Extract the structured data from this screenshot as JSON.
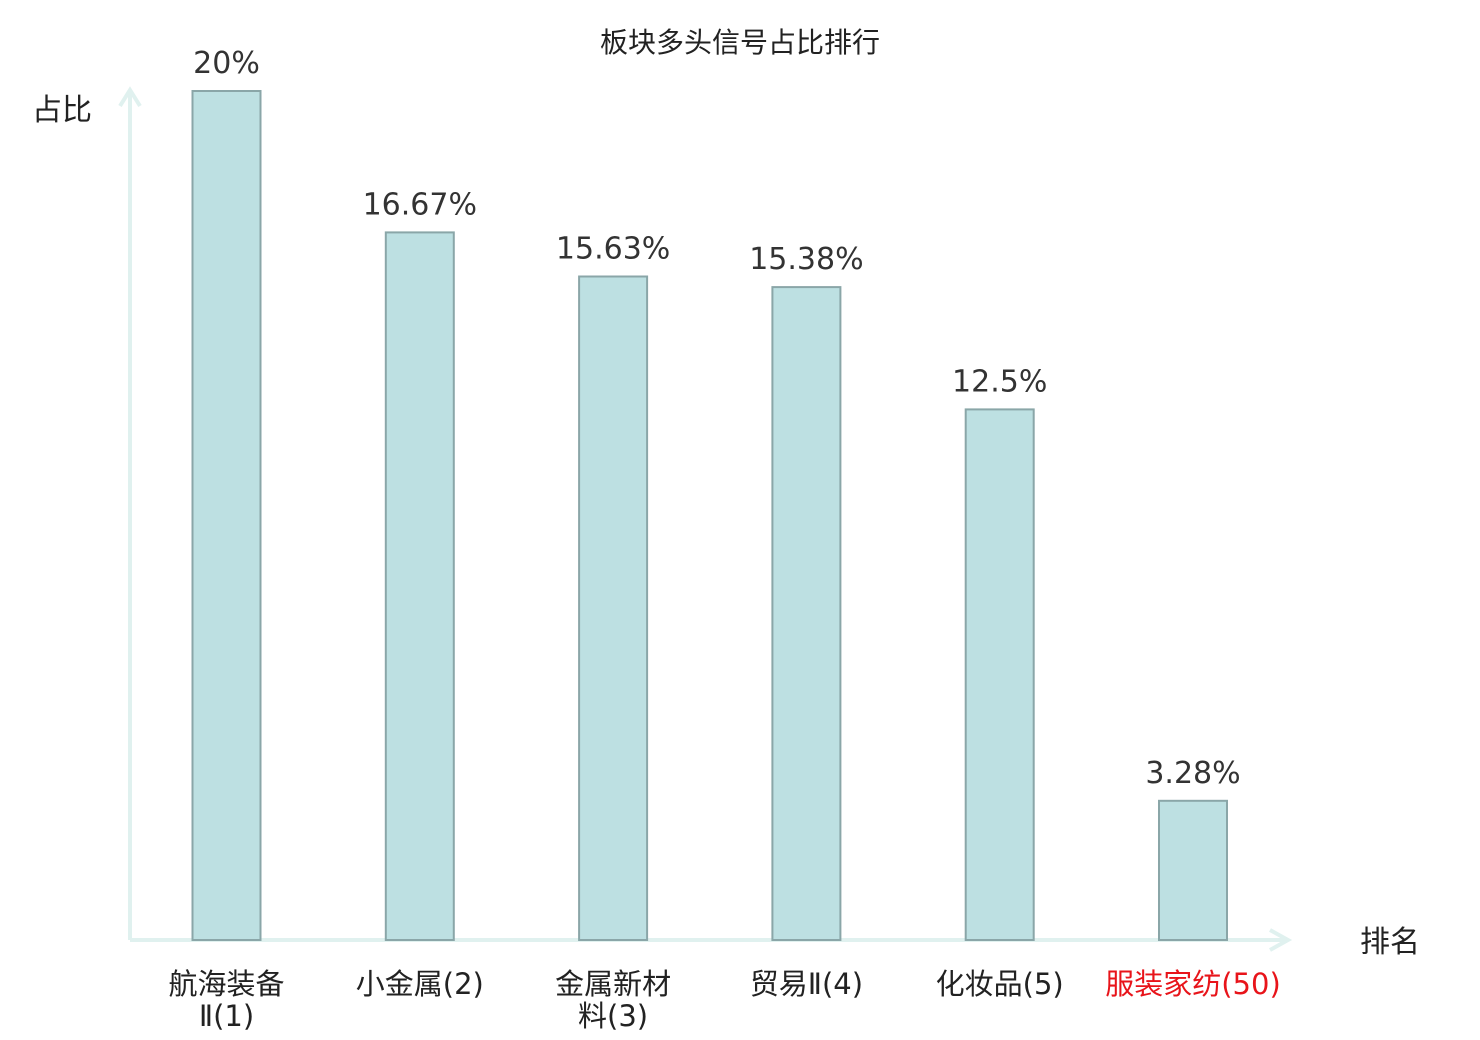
{
  "chart_data": {
    "type": "bar",
    "title": "板块多头信号占比排行",
    "ylabel": "占比",
    "xlabel": "排名",
    "ylim": [
      0,
      20
    ],
    "grid": false,
    "categories": [
      [
        "航海装备",
        "Ⅱ(1)"
      ],
      [
        "小金属(2)"
      ],
      [
        "金属新材",
        "料(3)"
      ],
      [
        "贸易Ⅱ(4)"
      ],
      [
        "化妆品(5)"
      ],
      [
        "服装家纺(50)"
      ]
    ],
    "values": [
      20,
      16.67,
      15.63,
      15.38,
      12.5,
      3.28
    ],
    "value_labels": [
      "20%",
      "16.67%",
      "15.63%",
      "15.38%",
      "12.5%",
      "3.28%"
    ],
    "highlight_index": 5
  },
  "colors": {
    "bar_fill": "#bde0e2",
    "bar_stroke": "#8aa6a8",
    "axis": "#e0f1ef",
    "text": "#222222",
    "highlight": "#e8141a"
  }
}
